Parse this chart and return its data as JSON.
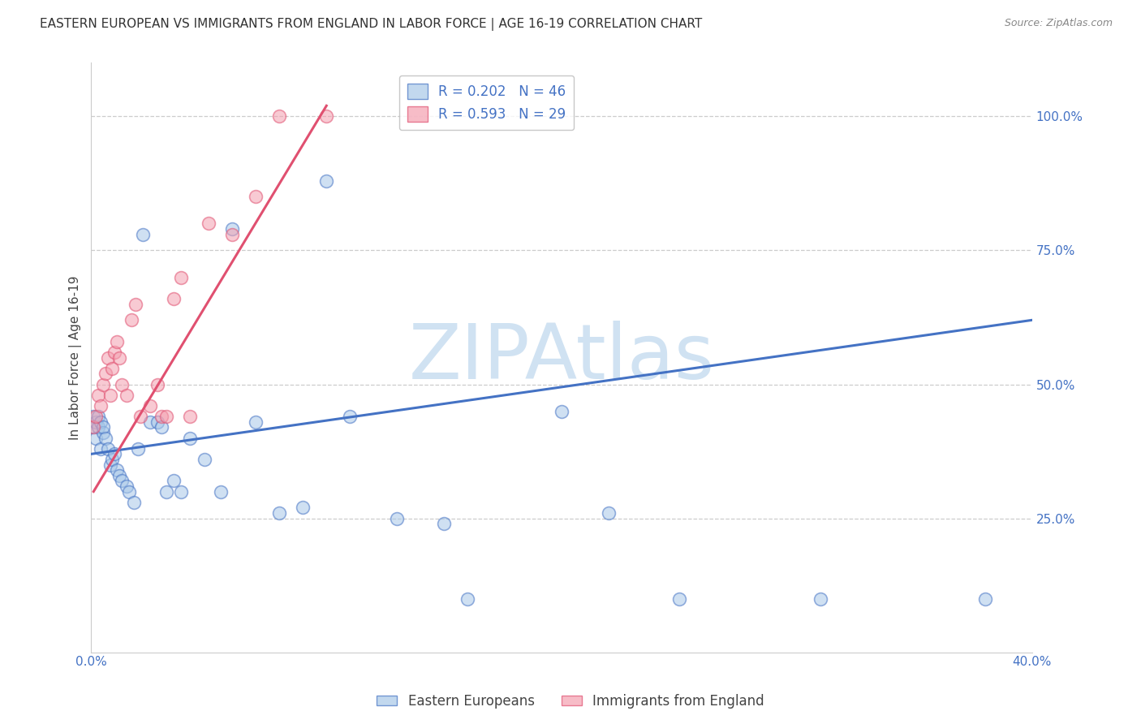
{
  "title": "EASTERN EUROPEAN VS IMMIGRANTS FROM ENGLAND IN LABOR FORCE | AGE 16-19 CORRELATION CHART",
  "source": "Source: ZipAtlas.com",
  "ylabel": "In Labor Force | Age 16-19",
  "right_ytick_labels": [
    "100.0%",
    "75.0%",
    "50.0%",
    "25.0%"
  ],
  "right_ytick_values": [
    1.0,
    0.75,
    0.5,
    0.25
  ],
  "xlim": [
    0.0,
    0.4
  ],
  "ylim": [
    0.0,
    1.1
  ],
  "blue_r": 0.202,
  "blue_n": 46,
  "pink_r": 0.593,
  "pink_n": 29,
  "blue_color": "#a8c8e8",
  "pink_color": "#f4a0b0",
  "blue_edge_color": "#4472c4",
  "pink_edge_color": "#e05070",
  "blue_line_color": "#4472c4",
  "pink_line_color": "#e05070",
  "legend_blue_label": "Eastern Europeans",
  "legend_pink_label": "Immigrants from England",
  "blue_scatter_x": [
    0.001,
    0.001,
    0.002,
    0.002,
    0.003,
    0.003,
    0.004,
    0.004,
    0.005,
    0.005,
    0.006,
    0.007,
    0.008,
    0.009,
    0.01,
    0.011,
    0.012,
    0.013,
    0.015,
    0.016,
    0.018,
    0.02,
    0.022,
    0.025,
    0.028,
    0.03,
    0.032,
    0.035,
    0.038,
    0.042,
    0.048,
    0.055,
    0.06,
    0.07,
    0.08,
    0.09,
    0.1,
    0.11,
    0.13,
    0.15,
    0.16,
    0.2,
    0.22,
    0.25,
    0.31,
    0.38
  ],
  "blue_scatter_y": [
    0.42,
    0.44,
    0.4,
    0.43,
    0.42,
    0.44,
    0.38,
    0.43,
    0.41,
    0.42,
    0.4,
    0.38,
    0.35,
    0.36,
    0.37,
    0.34,
    0.33,
    0.32,
    0.31,
    0.3,
    0.28,
    0.38,
    0.78,
    0.43,
    0.43,
    0.42,
    0.3,
    0.32,
    0.3,
    0.4,
    0.36,
    0.3,
    0.79,
    0.43,
    0.26,
    0.27,
    0.88,
    0.44,
    0.25,
    0.24,
    0.1,
    0.45,
    0.26,
    0.1,
    0.1,
    0.1
  ],
  "pink_scatter_x": [
    0.001,
    0.002,
    0.003,
    0.004,
    0.005,
    0.006,
    0.007,
    0.008,
    0.009,
    0.01,
    0.011,
    0.012,
    0.013,
    0.015,
    0.017,
    0.019,
    0.021,
    0.025,
    0.028,
    0.03,
    0.032,
    0.035,
    0.038,
    0.042,
    0.05,
    0.06,
    0.07,
    0.08,
    0.1
  ],
  "pink_scatter_y": [
    0.42,
    0.44,
    0.48,
    0.46,
    0.5,
    0.52,
    0.55,
    0.48,
    0.53,
    0.56,
    0.58,
    0.55,
    0.5,
    0.48,
    0.62,
    0.65,
    0.44,
    0.46,
    0.5,
    0.44,
    0.44,
    0.66,
    0.7,
    0.44,
    0.8,
    0.78,
    0.85,
    1.0,
    1.0
  ],
  "blue_line_x0": 0.0,
  "blue_line_y0": 0.37,
  "blue_line_x1": 0.4,
  "blue_line_y1": 0.62,
  "pink_line_x0": 0.001,
  "pink_line_y0": 0.3,
  "pink_line_x1": 0.1,
  "pink_line_y1": 1.02,
  "watermark_text": "ZIPAtlas",
  "watermark_color": "#c8ddf0",
  "title_fontsize": 11,
  "ylabel_fontsize": 11,
  "tick_fontsize": 11,
  "legend_fontsize": 12,
  "source_fontsize": 9
}
